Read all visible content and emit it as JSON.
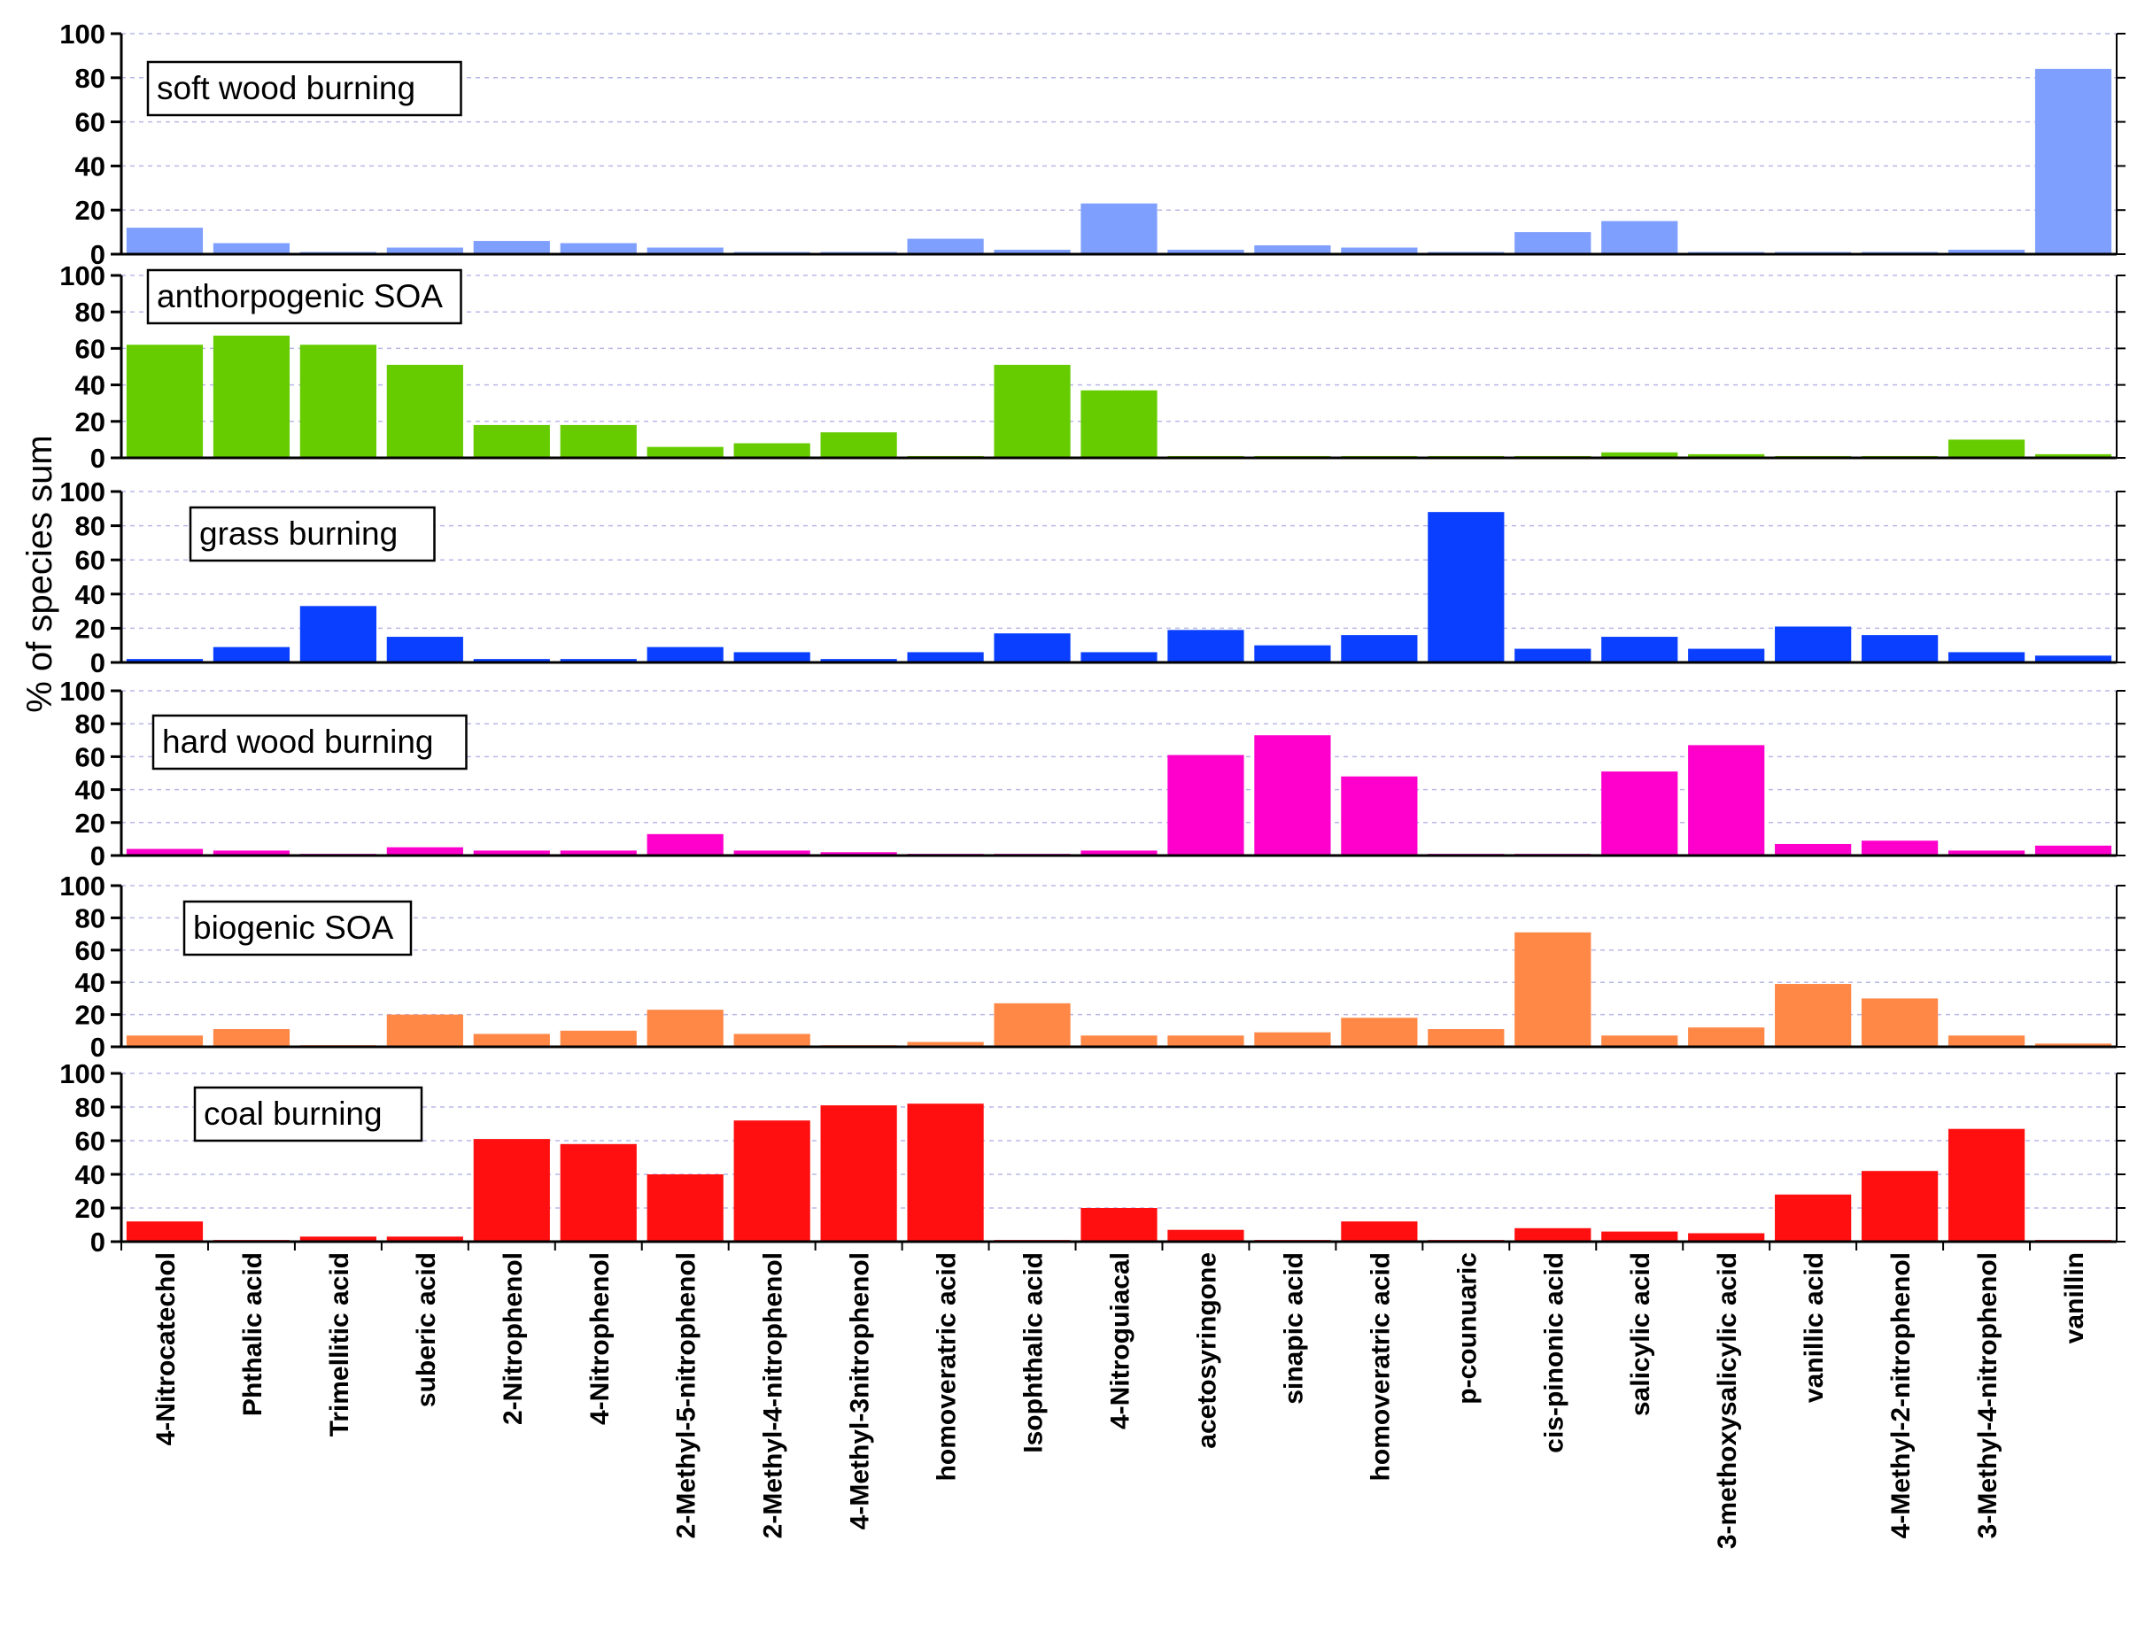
{
  "chart_data": {
    "type": "bar",
    "ylabel": "% of species sum",
    "ylim": [
      0,
      100
    ],
    "yticks": [
      0,
      20,
      40,
      60,
      80,
      100
    ],
    "grid": "horizontal dashed",
    "categories": [
      "4-Nitrocatechol",
      "Phthalic acid",
      "Trimellitic acid",
      "suberic acid",
      "2-Nitrophenol",
      "4-Nitrophenol",
      "2-Methyl-5-nitrophenol",
      "2-Methyl-4-nitrophenol",
      "4-Methyl-3nitrophenol",
      "homoveratric acid",
      "Isophthalic acid",
      "4-Nitroguiacal",
      "acetosyringone",
      "sinapic acid",
      "homoveratric acid",
      "p-counuaric",
      "cis-pinonic acid",
      "salicylic acid",
      "3-methoxysalicylic acid",
      "vanillic acid",
      "4-Methyl-2-nitrophenol",
      "3-Methyl-4-nitrophenol",
      "vanillin"
    ],
    "series": [
      {
        "name": "soft wood burning",
        "color": "#7f9fff",
        "values": [
          12,
          5,
          1,
          3,
          6,
          5,
          3,
          1,
          1,
          7,
          2,
          23,
          2,
          4,
          3,
          1,
          10,
          15,
          1,
          1,
          1,
          2,
          84
        ]
      },
      {
        "name": "anthorpogenic SOA",
        "color": "#66cc00",
        "values": [
          62,
          67,
          62,
          51,
          18,
          18,
          6,
          8,
          14,
          1,
          51,
          37,
          1,
          1,
          1,
          1,
          1,
          3,
          2,
          1,
          1,
          10,
          2
        ]
      },
      {
        "name": "grass burning",
        "color": "#0a3fff",
        "values": [
          2,
          9,
          33,
          15,
          2,
          2,
          9,
          6,
          2,
          6,
          17,
          6,
          19,
          10,
          16,
          88,
          8,
          15,
          8,
          21,
          16,
          6,
          4
        ]
      },
      {
        "name": "hard wood burning",
        "color": "#ff00cc",
        "values": [
          4,
          3,
          1,
          5,
          3,
          3,
          13,
          3,
          2,
          1,
          1,
          3,
          61,
          73,
          48,
          1,
          1,
          51,
          67,
          7,
          9,
          3,
          6
        ]
      },
      {
        "name": "biogenic SOA",
        "color": "#ff8847",
        "values": [
          7,
          11,
          1,
          20,
          8,
          10,
          23,
          8,
          1,
          3,
          27,
          7,
          7,
          9,
          18,
          11,
          71,
          7,
          12,
          39,
          30,
          7,
          2
        ]
      },
      {
        "name": "coal burning",
        "color": "#ff0f0f",
        "values": [
          12,
          1,
          3,
          3,
          61,
          58,
          40,
          72,
          81,
          82,
          1,
          20,
          7,
          1,
          12,
          1,
          8,
          6,
          5,
          28,
          42,
          67,
          1
        ]
      }
    ]
  }
}
